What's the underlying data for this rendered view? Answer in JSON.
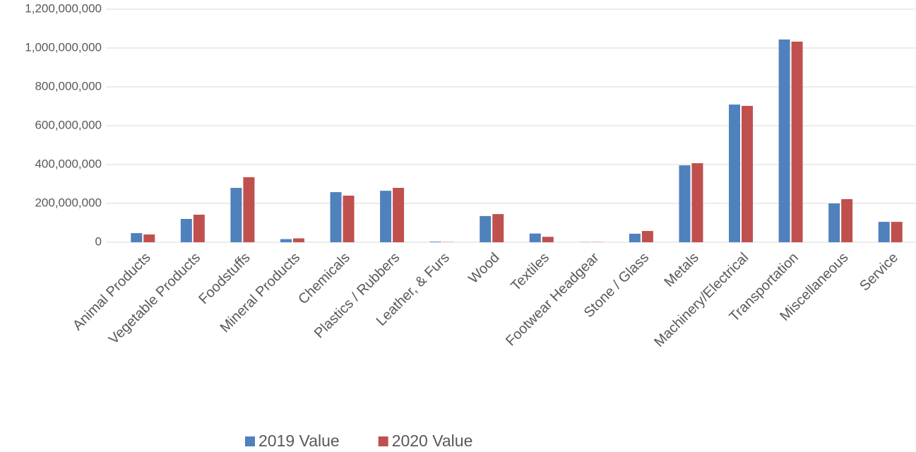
{
  "chart_data": {
    "type": "bar",
    "categories": [
      "Animal Products",
      "Vegetable Products",
      "Foodstuffs",
      "Mineral Products",
      "Chemicals",
      "Plastics / Rubbers",
      "Leather, & Furs",
      "Wood",
      "Textiles",
      "Footwear Headgear",
      "Stone / Glass",
      "Metals",
      "Machinery/Electrical",
      "Transportation",
      "Miscellaneous",
      "Service"
    ],
    "series": [
      {
        "name": "2019 Value",
        "color": "#4f81bd",
        "values": [
          47000000,
          120000000,
          280000000,
          16000000,
          258000000,
          265000000,
          3000000,
          135000000,
          45000000,
          1000000,
          44000000,
          396000000,
          709000000,
          1044000000,
          200000000,
          105000000
        ]
      },
      {
        "name": "2020 Value",
        "color": "#c0504d",
        "values": [
          40000000,
          142000000,
          335000000,
          20000000,
          240000000,
          280000000,
          1000000,
          145000000,
          28000000,
          1000000,
          58000000,
          407000000,
          702000000,
          1033000000,
          222000000,
          105000000
        ]
      }
    ],
    "ylim": [
      0,
      1200000000
    ],
    "yticks": [
      0,
      {
        "value": 200000000,
        "label": "200,000,000"
      },
      {
        "value": 400000000,
        "label": "400,000,000"
      },
      {
        "value": 600000000,
        "label": "600,000,000"
      },
      {
        "value": 800000000,
        "label": "800,000,000"
      },
      {
        "value": 1000000000,
        "label": "1,000,000,000"
      },
      {
        "value": 1200000000,
        "label": "1,200,000,000"
      }
    ],
    "grid": true,
    "legend": "bottom"
  }
}
